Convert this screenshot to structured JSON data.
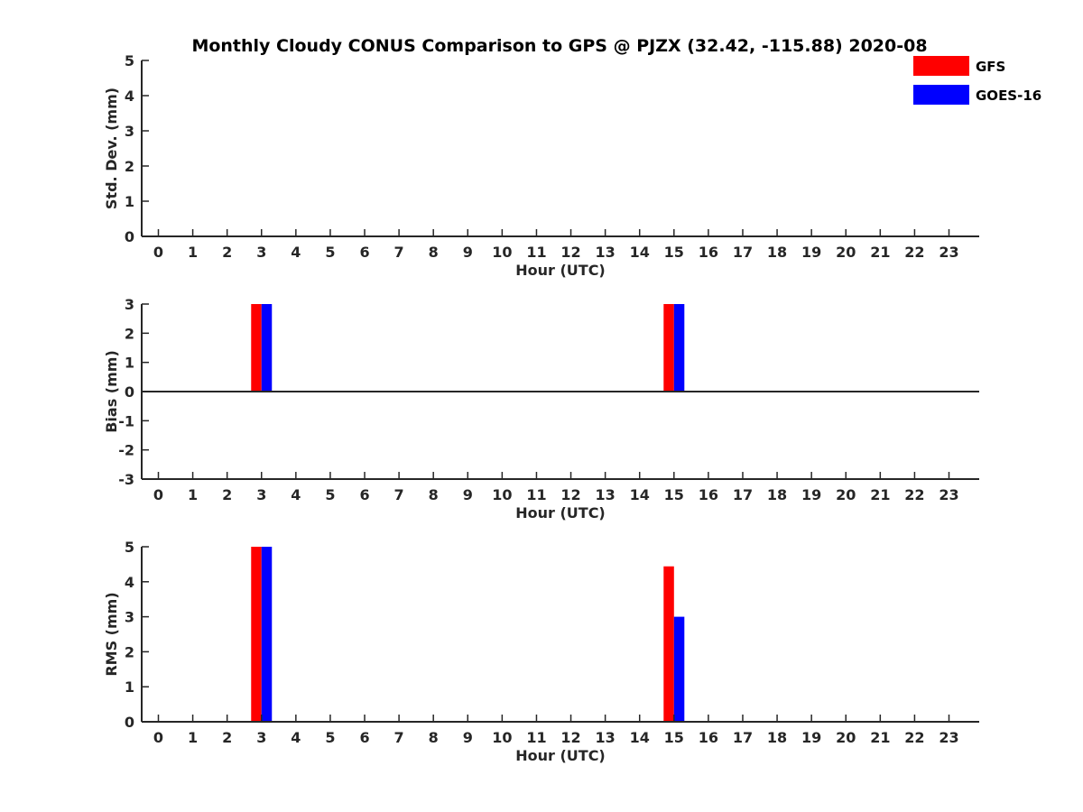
{
  "title": "Monthly Cloudy CONUS Comparison to GPS @ PJZX (32.42, -115.88) 2020-08",
  "legend": {
    "placement": "top-right",
    "entries": [
      {
        "label": "GFS",
        "color": "#ff0000"
      },
      {
        "label": "GOES-16",
        "color": "#0000ff"
      }
    ]
  },
  "chart_data": [
    {
      "type": "bar",
      "ylabel": "Std. Dev. (mm)",
      "xlabel": "Hour (UTC)",
      "ylim": [
        0,
        5
      ],
      "yticks": [
        0,
        1,
        2,
        3,
        4,
        5
      ],
      "categories": [
        0,
        1,
        2,
        3,
        4,
        5,
        6,
        7,
        8,
        9,
        10,
        11,
        12,
        13,
        14,
        15,
        16,
        17,
        18,
        19,
        20,
        21,
        22,
        23
      ],
      "series": [
        {
          "name": "GFS",
          "color": "#ff0000",
          "values": [
            null,
            null,
            null,
            0,
            null,
            null,
            null,
            null,
            null,
            null,
            null,
            null,
            null,
            null,
            null,
            0,
            null,
            null,
            null,
            null,
            null,
            null,
            null,
            null
          ]
        },
        {
          "name": "GOES-16",
          "color": "#0000ff",
          "values": [
            null,
            null,
            null,
            0,
            null,
            null,
            null,
            null,
            null,
            null,
            null,
            null,
            null,
            null,
            null,
            0,
            null,
            null,
            null,
            null,
            null,
            null,
            null,
            null
          ]
        }
      ]
    },
    {
      "type": "bar",
      "ylabel": "Bias (mm)",
      "xlabel": "Hour (UTC)",
      "ylim": [
        -3,
        3
      ],
      "yticks": [
        -3,
        -2,
        -1,
        0,
        1,
        2,
        3
      ],
      "zero_line": true,
      "categories": [
        0,
        1,
        2,
        3,
        4,
        5,
        6,
        7,
        8,
        9,
        10,
        11,
        12,
        13,
        14,
        15,
        16,
        17,
        18,
        19,
        20,
        21,
        22,
        23
      ],
      "series": [
        {
          "name": "GFS",
          "color": "#ff0000",
          "values": [
            null,
            null,
            null,
            3,
            null,
            null,
            null,
            null,
            null,
            null,
            null,
            null,
            null,
            null,
            null,
            3,
            null,
            null,
            null,
            null,
            null,
            null,
            null,
            null
          ]
        },
        {
          "name": "GOES-16",
          "color": "#0000ff",
          "values": [
            null,
            null,
            null,
            3,
            null,
            null,
            null,
            null,
            null,
            null,
            null,
            null,
            null,
            null,
            null,
            3,
            null,
            null,
            null,
            null,
            null,
            null,
            null,
            null
          ]
        }
      ]
    },
    {
      "type": "bar",
      "ylabel": "RMS (mm)",
      "xlabel": "Hour (UTC)",
      "ylim": [
        0,
        5
      ],
      "yticks": [
        0,
        1,
        2,
        3,
        4,
        5
      ],
      "categories": [
        0,
        1,
        2,
        3,
        4,
        5,
        6,
        7,
        8,
        9,
        10,
        11,
        12,
        13,
        14,
        15,
        16,
        17,
        18,
        19,
        20,
        21,
        22,
        23
      ],
      "series": [
        {
          "name": "GFS",
          "color": "#ff0000",
          "values": [
            null,
            null,
            null,
            5,
            null,
            null,
            null,
            null,
            null,
            null,
            null,
            null,
            null,
            null,
            null,
            4.44,
            null,
            null,
            null,
            null,
            null,
            null,
            null,
            null
          ]
        },
        {
          "name": "GOES-16",
          "color": "#0000ff",
          "values": [
            null,
            null,
            null,
            5,
            null,
            null,
            null,
            null,
            null,
            null,
            null,
            null,
            null,
            null,
            null,
            3,
            null,
            null,
            null,
            null,
            null,
            null,
            null,
            null
          ]
        }
      ]
    }
  ]
}
